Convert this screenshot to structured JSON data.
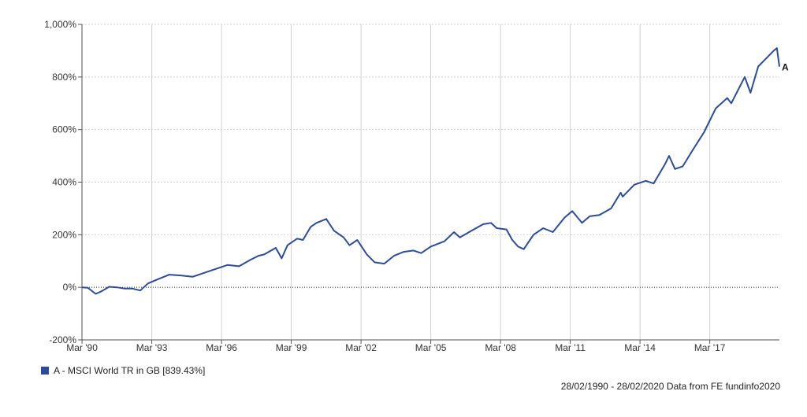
{
  "chart_data": {
    "type": "line",
    "ylim": [
      -200,
      1000
    ],
    "y_ticks": [
      "1,000%",
      "800%",
      "600%",
      "400%",
      "200%",
      "0%",
      "-200%"
    ],
    "y_tick_values": [
      1000,
      800,
      600,
      400,
      200,
      0,
      -200
    ],
    "x_ticks": [
      "Mar '90",
      "Mar '93",
      "Mar '96",
      "Mar '99",
      "Mar '02",
      "Mar '05",
      "Mar '08",
      "Mar '11",
      "Mar '14",
      "Mar '17"
    ],
    "x_tick_values": [
      "1990-03",
      "1993-03",
      "1996-03",
      "1999-03",
      "2002-03",
      "2005-03",
      "2008-03",
      "2011-03",
      "2014-03",
      "2017-03"
    ],
    "xlim": [
      "1990-02-28",
      "2020-02-28"
    ],
    "grid": true,
    "zero_line_dotted": true,
    "series": [
      {
        "name": "A - MSCI World TR in GB [839.43%]",
        "end_label": "A",
        "color": "#2b4c9b",
        "points": [
          [
            "1990-02-28",
            0
          ],
          [
            "1990-06-01",
            -2
          ],
          [
            "1990-10-01",
            -25
          ],
          [
            "1991-01-01",
            -15
          ],
          [
            "1991-05-01",
            2
          ],
          [
            "1991-09-01",
            0
          ],
          [
            "1992-01-01",
            -5
          ],
          [
            "1992-05-01",
            -5
          ],
          [
            "1992-09-01",
            -12
          ],
          [
            "1993-01-01",
            15
          ],
          [
            "1993-06-01",
            30
          ],
          [
            "1993-12-01",
            48
          ],
          [
            "1994-06-01",
            45
          ],
          [
            "1994-12-01",
            40
          ],
          [
            "1995-06-01",
            55
          ],
          [
            "1995-12-01",
            70
          ],
          [
            "1996-06-01",
            85
          ],
          [
            "1996-12-01",
            80
          ],
          [
            "1997-06-01",
            105
          ],
          [
            "1997-10-01",
            120
          ],
          [
            "1998-01-01",
            125
          ],
          [
            "1998-07-01",
            150
          ],
          [
            "1998-10-01",
            110
          ],
          [
            "1999-01-01",
            160
          ],
          [
            "1999-06-01",
            185
          ],
          [
            "1999-09-01",
            180
          ],
          [
            "2000-01-01",
            230
          ],
          [
            "2000-04-01",
            245
          ],
          [
            "2000-09-01",
            260
          ],
          [
            "2001-01-01",
            215
          ],
          [
            "2001-06-01",
            190
          ],
          [
            "2001-09-01",
            160
          ],
          [
            "2002-01-01",
            180
          ],
          [
            "2002-06-01",
            125
          ],
          [
            "2002-10-01",
            95
          ],
          [
            "2003-03-01",
            90
          ],
          [
            "2003-08-01",
            120
          ],
          [
            "2004-01-01",
            135
          ],
          [
            "2004-06-01",
            140
          ],
          [
            "2004-10-01",
            130
          ],
          [
            "2005-03-01",
            155
          ],
          [
            "2005-10-01",
            175
          ],
          [
            "2006-03-01",
            210
          ],
          [
            "2006-06-01",
            190
          ],
          [
            "2006-12-01",
            215
          ],
          [
            "2007-06-01",
            240
          ],
          [
            "2007-10-01",
            245
          ],
          [
            "2008-01-01",
            225
          ],
          [
            "2008-06-01",
            220
          ],
          [
            "2008-09-01",
            180
          ],
          [
            "2008-12-01",
            155
          ],
          [
            "2009-03-01",
            145
          ],
          [
            "2009-08-01",
            200
          ],
          [
            "2010-01-01",
            225
          ],
          [
            "2010-06-01",
            210
          ],
          [
            "2010-12-01",
            265
          ],
          [
            "2011-04-01",
            290
          ],
          [
            "2011-09-01",
            245
          ],
          [
            "2012-01-01",
            270
          ],
          [
            "2012-06-01",
            275
          ],
          [
            "2012-12-01",
            300
          ],
          [
            "2013-05-01",
            360
          ],
          [
            "2013-06-01",
            345
          ],
          [
            "2013-12-01",
            390
          ],
          [
            "2014-06-01",
            405
          ],
          [
            "2014-10-01",
            395
          ],
          [
            "2015-04-01",
            470
          ],
          [
            "2015-06-01",
            500
          ],
          [
            "2015-09-01",
            450
          ],
          [
            "2016-01-01",
            460
          ],
          [
            "2016-06-01",
            520
          ],
          [
            "2016-12-01",
            590
          ],
          [
            "2017-06-01",
            680
          ],
          [
            "2017-12-01",
            720
          ],
          [
            "2018-02-01",
            700
          ],
          [
            "2018-09-01",
            800
          ],
          [
            "2018-12-01",
            740
          ],
          [
            "2019-04-01",
            840
          ],
          [
            "2019-08-01",
            870
          ],
          [
            "2019-12-01",
            900
          ],
          [
            "2020-01-20",
            910
          ],
          [
            "2020-02-28",
            839.43
          ]
        ]
      }
    ]
  },
  "legend": {
    "label": "A - MSCI World TR in GB [839.43%]",
    "color": "#2b4c9b"
  },
  "footer": {
    "note": "28/02/1990 - 28/02/2020 Data from FE fundinfo2020"
  }
}
